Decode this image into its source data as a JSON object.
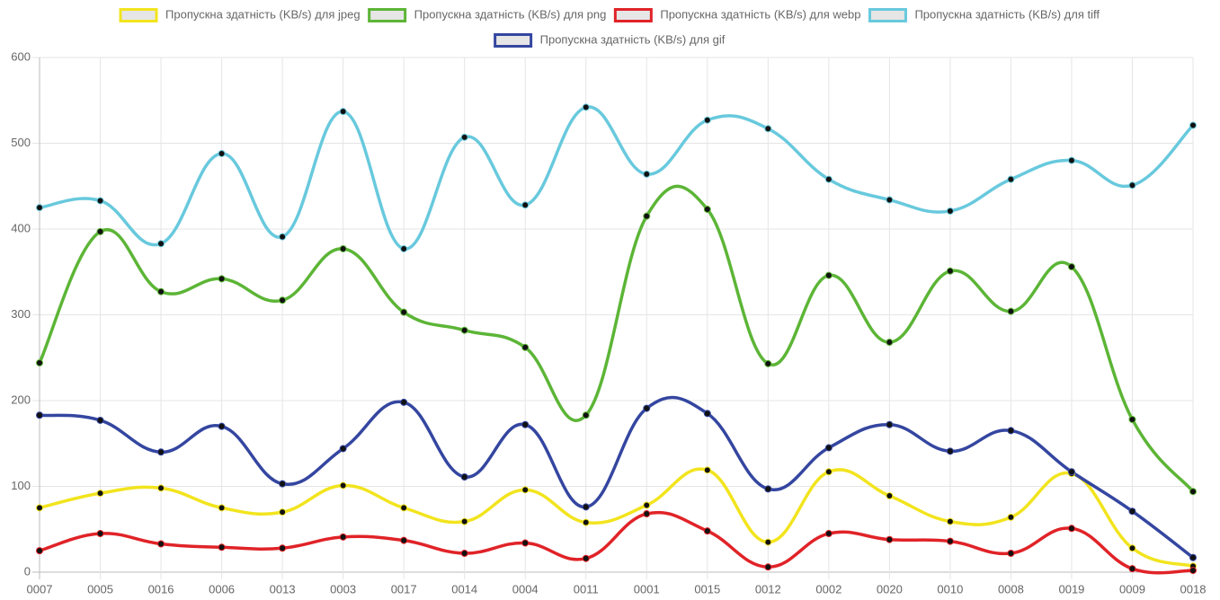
{
  "chart_data": {
    "type": "line",
    "categories": [
      "0007",
      "0005",
      "0016",
      "0006",
      "0013",
      "0003",
      "0017",
      "0014",
      "0004",
      "0011",
      "0001",
      "0015",
      "0012",
      "0002",
      "0020",
      "0010",
      "0008",
      "0019",
      "0009",
      "0018"
    ],
    "series": [
      {
        "name": "Пропускна здатність (KB/s) для jpeg",
        "color": "#f2e41e",
        "values": [
          75,
          92,
          98,
          75,
          70,
          101,
          75,
          59,
          96,
          58,
          78,
          119,
          35,
          117,
          89,
          59,
          64,
          115,
          28,
          7
        ]
      },
      {
        "name": "Пропускна здатність (KB/s) для png",
        "color": "#5cb536",
        "values": [
          244,
          397,
          327,
          342,
          317,
          377,
          303,
          282,
          262,
          183,
          415,
          423,
          243,
          346,
          268,
          351,
          304,
          356,
          178,
          94
        ]
      },
      {
        "name": "Пропускна здатність (KB/s) для webp",
        "color": "#e02328",
        "values": [
          25,
          45,
          33,
          29,
          28,
          41,
          37,
          22,
          34,
          16,
          68,
          48,
          6,
          45,
          38,
          36,
          22,
          51,
          4,
          2
        ]
      },
      {
        "name": "Пропускна здатність (KB/s) для tiff",
        "color": "#68c9dd",
        "values": [
          425,
          433,
          383,
          488,
          391,
          537,
          377,
          507,
          428,
          542,
          464,
          527,
          517,
          458,
          434,
          421,
          458,
          480,
          451,
          521
        ]
      },
      {
        "name": "Пропускна здатність (KB/s) для gif",
        "color": "#3446a0",
        "values": [
          183,
          177,
          140,
          170,
          103,
          144,
          198,
          111,
          172,
          76,
          191,
          185,
          97,
          145,
          172,
          141,
          165,
          117,
          71,
          17
        ]
      }
    ],
    "ylim": [
      0,
      600
    ],
    "yticks": [
      0,
      100,
      200,
      300,
      400,
      500,
      600
    ],
    "grid": true,
    "legend": "top"
  }
}
